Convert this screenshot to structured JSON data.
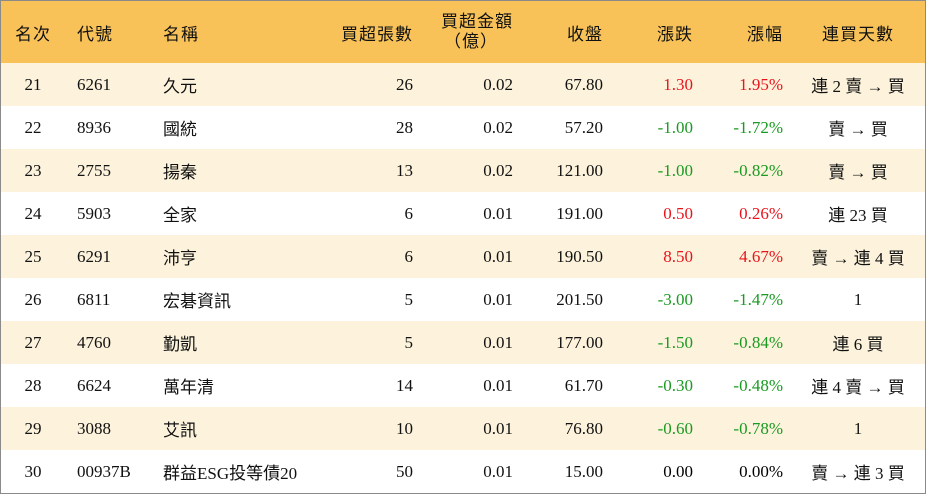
{
  "table": {
    "header": [
      "名次",
      "代號",
      "名稱",
      "買超張數",
      [
        "買超金額",
        "（億）"
      ],
      "收盤",
      "漲跌",
      "漲幅",
      "連買天數"
    ],
    "rows": [
      [
        "21",
        "6261",
        "久元",
        "26",
        "0.02",
        "67.80",
        "1.30",
        "1.95%",
        "連 2 賣 → 買"
      ],
      [
        "22",
        "8936",
        "國統",
        "28",
        "0.02",
        "57.20",
        "-1.00",
        "-1.72%",
        "賣 → 買"
      ],
      [
        "23",
        "2755",
        "揚秦",
        "13",
        "0.02",
        "121.00",
        "-1.00",
        "-0.82%",
        "賣 → 買"
      ],
      [
        "24",
        "5903",
        "全家",
        "6",
        "0.01",
        "191.00",
        "0.50",
        "0.26%",
        "連 23 買"
      ],
      [
        "25",
        "6291",
        "沛亨",
        "6",
        "0.01",
        "190.50",
        "8.50",
        "4.67%",
        "賣 → 連 4 買"
      ],
      [
        "26",
        "6811",
        "宏碁資訊",
        "5",
        "0.01",
        "201.50",
        "-3.00",
        "-1.47%",
        "1"
      ],
      [
        "27",
        "4760",
        "勤凱",
        "5",
        "0.01",
        "177.00",
        "-1.50",
        "-0.84%",
        "連 6 買"
      ],
      [
        "28",
        "6624",
        "萬年清",
        "14",
        "0.01",
        "61.70",
        "-0.30",
        "-0.48%",
        "連 4 賣 → 買"
      ],
      [
        "29",
        "3088",
        "艾訊",
        "10",
        "0.01",
        "76.80",
        "-0.60",
        "-0.78%",
        "1"
      ],
      [
        "30",
        "00937B",
        "群益ESG投等債20",
        "50",
        "0.01",
        "15.00",
        "0.00",
        "0.00%",
        "賣 → 連 3 買"
      ]
    ],
    "up_color": "#e8141c",
    "down_color": "#1a9a22",
    "flat_color": "#000000"
  }
}
